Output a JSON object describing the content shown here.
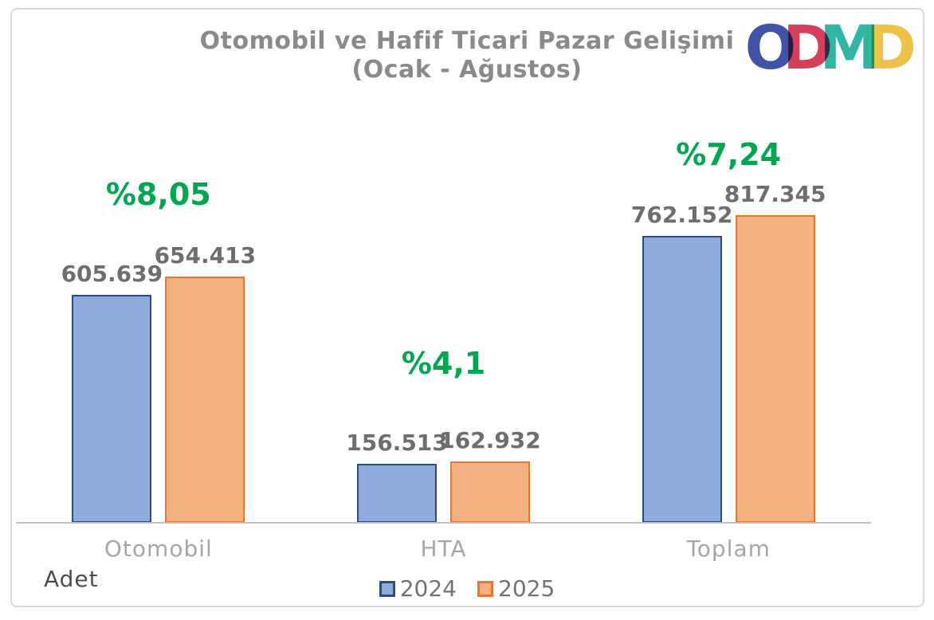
{
  "title": {
    "line1": "Otomobil ve Hafif Ticari Pazar Gelişimi",
    "line2": "(Ocak - Ağustos)"
  },
  "logo": {
    "name": "ODMD",
    "letters": [
      {
        "char": "O",
        "color": "#4053a4"
      },
      {
        "char": "D",
        "color": "#d4405c"
      },
      {
        "char": "M",
        "color": "#30b5a5"
      },
      {
        "char": "D",
        "color": "#ecc24b"
      }
    ]
  },
  "axis_unit": "Adet",
  "chart_data": {
    "type": "bar",
    "title": "Otomobil ve Hafif Ticari Pazar Gelişimi (Ocak - Ağustos)",
    "categories": [
      "Otomobil",
      "HTA",
      "Toplam"
    ],
    "series": [
      {
        "name": "2024",
        "fill": "#8faadc",
        "border": "#2e4b7c",
        "values": [
          605639,
          156513,
          762152
        ],
        "labels": [
          "605.639",
          "156.513",
          "762.152"
        ]
      },
      {
        "name": "2025",
        "fill": "#f4b183",
        "border": "#e8762d",
        "values": [
          654413,
          162932,
          817345
        ],
        "labels": [
          "654.413",
          "162.932",
          "817.345"
        ]
      }
    ],
    "growth_labels": [
      "%8,05",
      "%4,1",
      "%7,24"
    ],
    "growth_color": "#00a651",
    "xlabel": "",
    "ylabel": "Adet",
    "ylim": [
      0,
      817345
    ],
    "grid": false,
    "legend_position": "bottom",
    "value_label_color": "#6e6e6e",
    "category_label_color": "#a6a6a6"
  }
}
